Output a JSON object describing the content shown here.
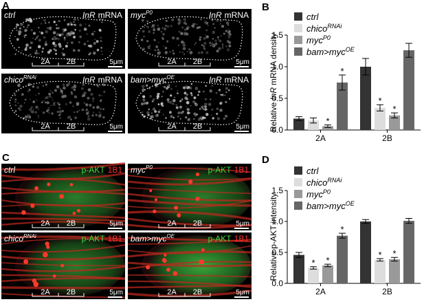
{
  "panel_labels": [
    "A",
    "B",
    "C",
    "D"
  ],
  "microscopy": [
    {
      "stain": [
        "InR",
        "mRNA"
      ],
      "regions": [
        "2A",
        "2B"
      ],
      "scale": "5μm",
      "images": [
        {
          "genotype": "ctrl"
        },
        {
          "genotype": "myc",
          "superscript": "P0"
        },
        {
          "genotype": "chico",
          "superscript": "RNAi"
        },
        {
          "genotype": "bam>myc",
          "superscript": "OE"
        }
      ]
    },
    {
      "stain": [
        "p-AKT",
        "1B1"
      ],
      "regions": [
        "2A",
        "2B"
      ],
      "scale": "5μm",
      "images": [
        {
          "genotype": "ctrl"
        },
        {
          "genotype": "myc",
          "superscript": "P0"
        },
        {
          "genotype": "chico",
          "superscript": "RNAi"
        },
        {
          "genotype": "bam>myc",
          "superscript": "OE"
        }
      ]
    }
  ],
  "chart_data": [
    {
      "type": "bar",
      "y_label": [
        "Relative",
        "InR",
        "mRNA density"
      ],
      "categories": [
        "2A",
        "2B"
      ],
      "ylim": [
        0,
        1.5
      ],
      "yticks": [
        {
          "value": 0,
          "label": "0.0"
        },
        {
          "value": 0.5,
          "label": "0.5"
        },
        {
          "value": 1,
          "label": "1.0"
        },
        {
          "value": 1.5,
          "label": "1.5"
        }
      ],
      "series": [
        {
          "name": "ctrl",
          "color": "#333333",
          "values": [
            0.18,
            1.0
          ],
          "errors": [
            0.03,
            0.13
          ],
          "significance": [
            null,
            null
          ]
        },
        {
          "name": "chico",
          "superscript": "RNAi",
          "color": "#dddddd",
          "values": [
            0.15,
            0.35
          ],
          "errors": [
            0.04,
            0.05
          ],
          "significance": [
            null,
            "*"
          ]
        },
        {
          "name": "myc",
          "superscript": "P0",
          "color": "#999999",
          "values": [
            0.06,
            0.23
          ],
          "errors": [
            0.02,
            0.04
          ],
          "significance": [
            "*",
            "*"
          ]
        },
        {
          "name": "bam>myc",
          "superscript": "OE",
          "color": "#666666",
          "values": [
            0.75,
            1.26
          ],
          "errors": [
            0.12,
            0.11
          ],
          "significance": [
            "*",
            null
          ]
        }
      ]
    },
    {
      "type": "bar",
      "y_label": [
        "Relative p-AKT intensity"
      ],
      "categories": [
        "2A",
        "2B"
      ],
      "ylim": [
        0,
        1.5
      ],
      "yticks": [
        {
          "value": 0,
          "label": "0.0"
        },
        {
          "value": 0.5,
          "label": "0.5"
        },
        {
          "value": 1,
          "label": "1.0"
        },
        {
          "value": 1.5,
          "label": "1.5"
        }
      ],
      "series": [
        {
          "name": "ctrl",
          "color": "#333333",
          "values": [
            0.46,
            1.0
          ],
          "errors": [
            0.04,
            0.03
          ],
          "significance": [
            null,
            null
          ]
        },
        {
          "name": "chico",
          "superscript": "RNAi",
          "color": "#dddddd",
          "values": [
            0.25,
            0.38
          ],
          "errors": [
            0.02,
            0.02
          ],
          "significance": [
            "*",
            "*"
          ]
        },
        {
          "name": "myc",
          "superscript": "P0",
          "color": "#999999",
          "values": [
            0.29,
            0.39
          ],
          "errors": [
            0.02,
            0.03
          ],
          "significance": [
            "*",
            "*"
          ]
        },
        {
          "name": "bam>myc",
          "superscript": "OE",
          "color": "#666666",
          "values": [
            0.77,
            1.01
          ],
          "errors": [
            0.04,
            0.04
          ],
          "significance": [
            "*",
            null
          ]
        }
      ]
    }
  ]
}
